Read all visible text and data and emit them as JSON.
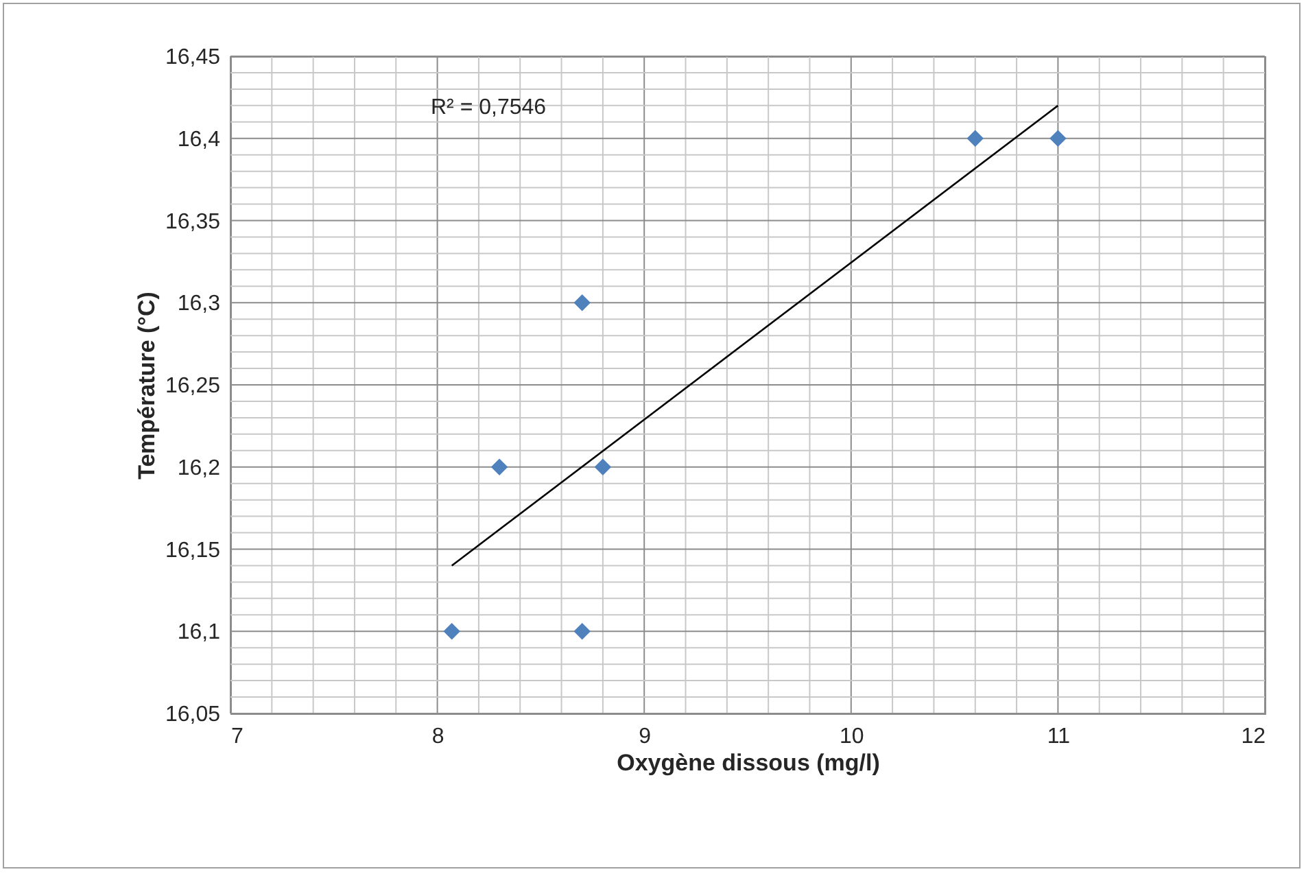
{
  "chart_data": {
    "type": "scatter",
    "xlabel": "Oxygène dissous (mg/l)",
    "ylabel": "Température (°C)",
    "annotations": [
      "R² = 0,7546"
    ],
    "grid": true,
    "xlim": [
      7,
      12
    ],
    "ylim": [
      16.05,
      16.45
    ],
    "xticks": [
      7,
      {
        "value": 7.2,
        "label": null
      },
      {
        "value": 7.4,
        "label": null
      },
      {
        "value": 7.6,
        "label": null
      },
      {
        "value": 7.8,
        "label": null
      },
      8,
      {
        "value": 8.2,
        "label": null
      },
      {
        "value": 8.4,
        "label": null
      },
      {
        "value": 8.6,
        "label": null
      },
      {
        "value": 8.8,
        "label": null
      },
      9,
      {
        "value": 9.2,
        "label": null
      },
      {
        "value": 9.4,
        "label": null
      },
      {
        "value": 9.6,
        "label": null
      },
      {
        "value": 9.8,
        "label": null
      },
      10,
      {
        "value": 10.2,
        "label": null
      },
      {
        "value": 10.4,
        "label": null
      },
      {
        "value": 10.6,
        "label": null
      },
      {
        "value": 10.8,
        "label": null
      },
      11,
      {
        "value": 11.2,
        "label": null
      },
      {
        "value": 11.4,
        "label": null
      },
      {
        "value": 11.6,
        "label": null
      },
      {
        "value": 11.8,
        "label": null
      },
      12
    ],
    "yticks": [
      {
        "value": 16.05,
        "label": "16,05"
      },
      {
        "value": 16.06,
        "label": null
      },
      {
        "value": 16.07,
        "label": null
      },
      {
        "value": 16.08,
        "label": null
      },
      {
        "value": 16.09,
        "label": null
      },
      {
        "value": 16.1,
        "label": "16,1"
      },
      {
        "value": 16.11,
        "label": null
      },
      {
        "value": 16.12,
        "label": null
      },
      {
        "value": 16.13,
        "label": null
      },
      {
        "value": 16.14,
        "label": null
      },
      {
        "value": 16.15,
        "label": "16,15"
      },
      {
        "value": 16.16,
        "label": null
      },
      {
        "value": 16.17,
        "label": null
      },
      {
        "value": 16.18,
        "label": null
      },
      {
        "value": 16.19,
        "label": null
      },
      {
        "value": 16.2,
        "label": "16,2"
      },
      {
        "value": 16.21,
        "label": null
      },
      {
        "value": 16.22,
        "label": null
      },
      {
        "value": 16.23,
        "label": null
      },
      {
        "value": 16.24,
        "label": null
      },
      {
        "value": 16.25,
        "label": "16,25"
      },
      {
        "value": 16.26,
        "label": null
      },
      {
        "value": 16.27,
        "label": null
      },
      {
        "value": 16.28,
        "label": null
      },
      {
        "value": 16.29,
        "label": null
      },
      {
        "value": 16.3,
        "label": "16,3"
      },
      {
        "value": 16.31,
        "label": null
      },
      {
        "value": 16.32,
        "label": null
      },
      {
        "value": 16.33,
        "label": null
      },
      {
        "value": 16.34,
        "label": null
      },
      {
        "value": 16.35,
        "label": "16,35"
      },
      {
        "value": 16.36,
        "label": null
      },
      {
        "value": 16.37,
        "label": null
      },
      {
        "value": 16.38,
        "label": null
      },
      {
        "value": 16.39,
        "label": null
      },
      {
        "value": 16.4,
        "label": "16,4"
      },
      {
        "value": 16.41,
        "label": null
      },
      {
        "value": 16.42,
        "label": null
      },
      {
        "value": 16.43,
        "label": null
      },
      {
        "value": 16.44,
        "label": null
      },
      {
        "value": 16.45,
        "label": "16,45"
      }
    ],
    "series": [
      {
        "marker": "diamond",
        "color": "#4f81bd",
        "x": [
          8.07,
          8.3,
          8.7,
          8.7,
          8.8,
          10.6,
          11
        ],
        "values": [
          16.1,
          16.2,
          16.1,
          16.3,
          16.2,
          16.4,
          16.4
        ]
      },
      {
        "type": "line",
        "color": "#000000",
        "x": [
          8.07,
          11
        ],
        "values": [
          16.14,
          16.42
        ]
      }
    ]
  }
}
